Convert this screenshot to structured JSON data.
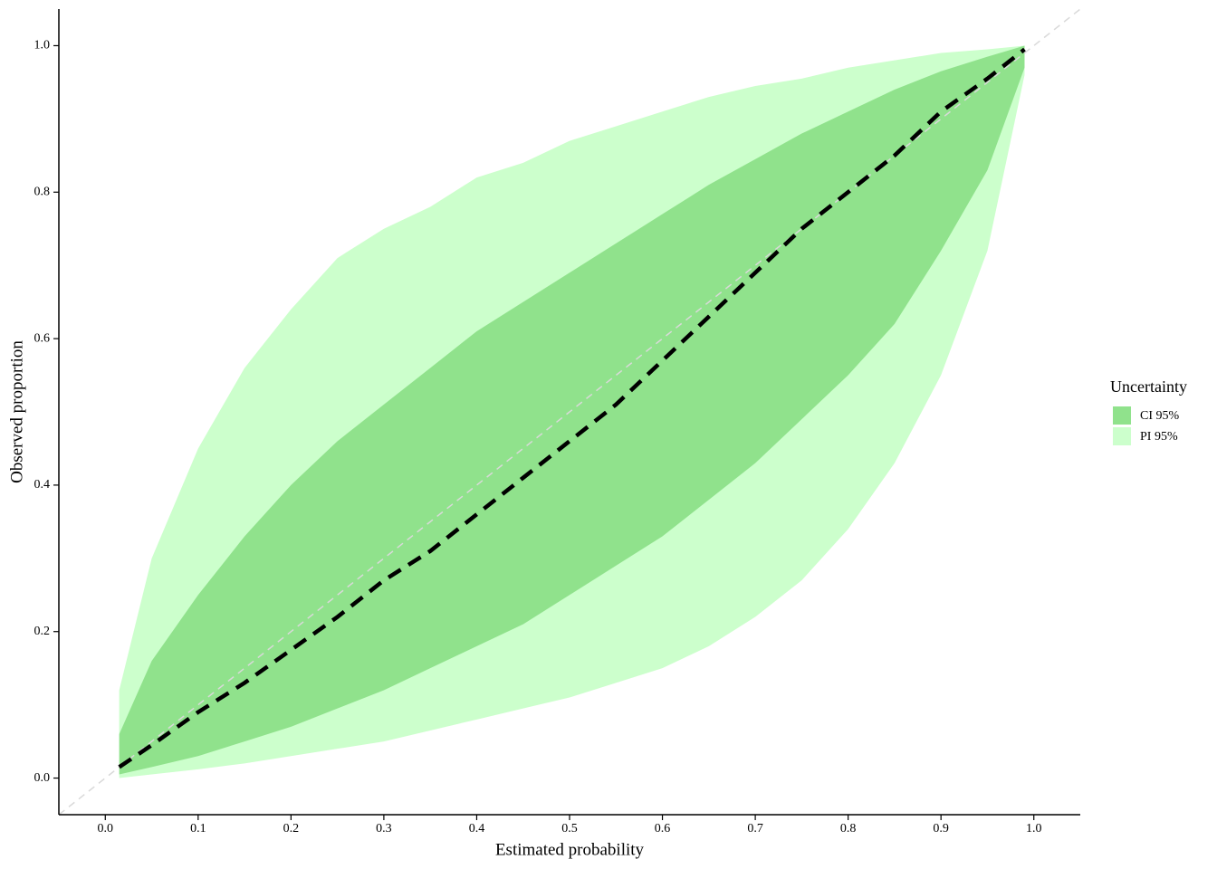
{
  "chart_data": {
    "type": "ribbon",
    "x_label": "Estimated probability",
    "y_label": "Observed proportion",
    "legend_title": "Uncertainty",
    "legend_position": "right",
    "xlim": [
      -0.05,
      1.05
    ],
    "ylim": [
      -0.05,
      1.05
    ],
    "xticks": [
      {
        "value": 0,
        "label": "0.0"
      },
      0.1,
      0.2,
      0.3,
      0.4,
      0.5,
      0.6,
      0.7,
      0.8,
      0.9,
      {
        "value": 1,
        "label": "1.0"
      }
    ],
    "yticks": [
      {
        "value": 0,
        "label": "0.0"
      },
      0.2,
      0.4,
      0.6,
      0.8,
      {
        "value": 1,
        "label": "1.0"
      }
    ],
    "grid": false,
    "reference_line": true,
    "x": [
      0.015,
      0.05,
      0.1,
      0.15,
      0.2,
      0.25,
      0.3,
      0.35,
      0.4,
      0.45,
      0.5,
      0.55,
      0.6,
      0.65,
      0.7,
      0.75,
      0.8,
      0.85,
      0.9,
      0.95,
      0.99
    ],
    "series": [
      {
        "name": "PI 95%",
        "color": "#ccffcc",
        "upper": [
          0.12,
          0.3,
          0.45,
          0.56,
          0.64,
          0.71,
          0.75,
          0.78,
          0.82,
          0.84,
          0.87,
          0.89,
          0.91,
          0.93,
          0.945,
          0.955,
          0.97,
          0.98,
          0.99,
          0.995,
          1.0
        ],
        "lower": [
          0.0,
          0.005,
          0.012,
          0.02,
          0.03,
          0.04,
          0.05,
          0.065,
          0.08,
          0.095,
          0.11,
          0.13,
          0.15,
          0.18,
          0.22,
          0.27,
          0.34,
          0.43,
          0.55,
          0.72,
          0.96
        ]
      },
      {
        "name": "CI 95%",
        "color": "#90e28c",
        "upper": [
          0.06,
          0.16,
          0.25,
          0.33,
          0.4,
          0.46,
          0.51,
          0.56,
          0.61,
          0.65,
          0.69,
          0.73,
          0.77,
          0.81,
          0.845,
          0.88,
          0.91,
          0.94,
          0.965,
          0.985,
          1.0
        ],
        "lower": [
          0.005,
          0.015,
          0.03,
          0.05,
          0.07,
          0.095,
          0.12,
          0.15,
          0.18,
          0.21,
          0.25,
          0.29,
          0.33,
          0.38,
          0.43,
          0.49,
          0.55,
          0.62,
          0.72,
          0.83,
          0.97
        ]
      }
    ],
    "line": {
      "color": "#000000",
      "values": [
        0.015,
        0.045,
        0.09,
        0.13,
        0.175,
        0.22,
        0.27,
        0.31,
        0.36,
        0.41,
        0.46,
        0.51,
        0.57,
        0.63,
        0.69,
        0.75,
        0.8,
        0.85,
        0.91,
        0.955,
        0.995
      ]
    }
  }
}
